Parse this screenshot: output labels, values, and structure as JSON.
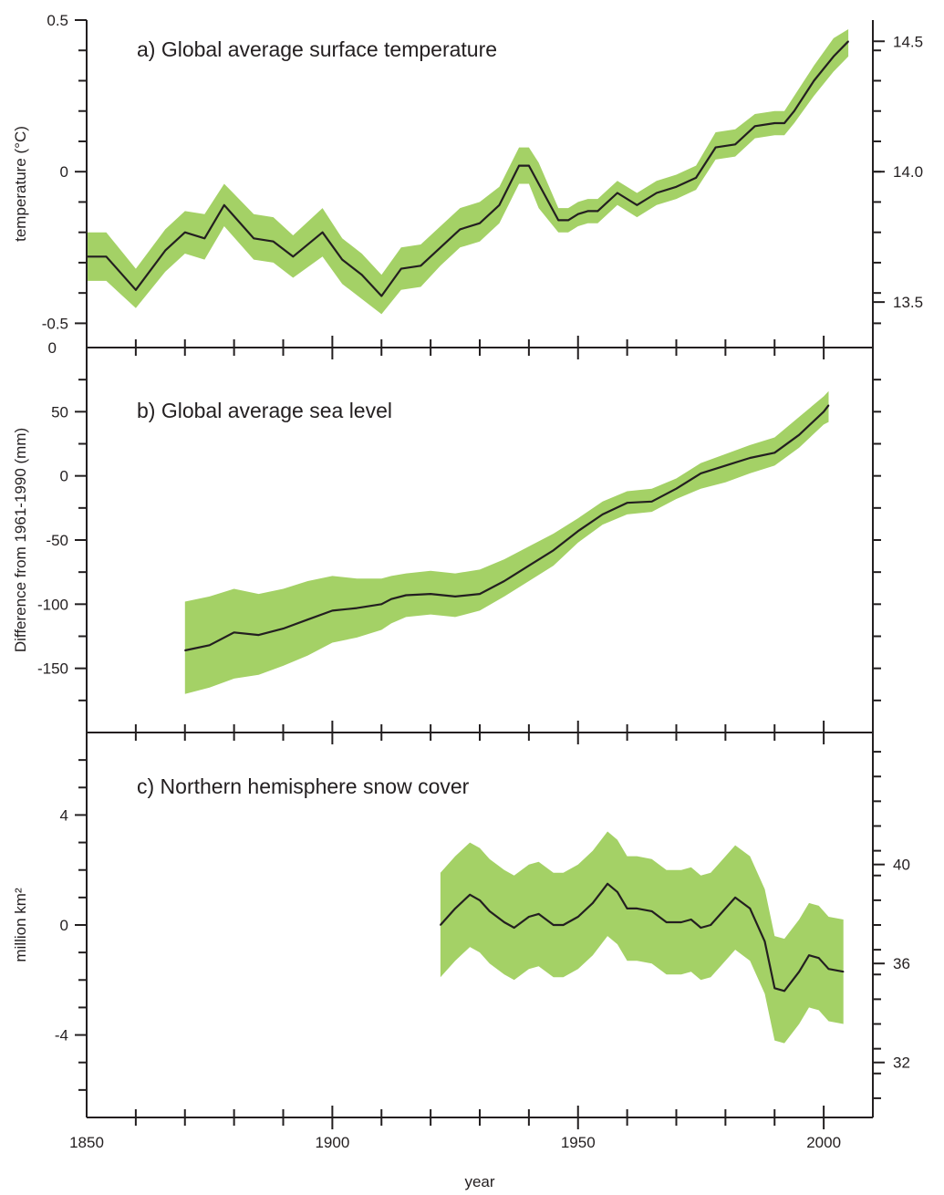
{
  "x_axis": {
    "label": "year",
    "min": 1850,
    "max": 2010,
    "ticks": [
      1850,
      1900,
      1950,
      2000
    ],
    "minor_step": 10
  },
  "chart_data": [
    {
      "type": "line",
      "title": "a) Global average surface temperature",
      "ylabel": "temperature (°C)",
      "ylim": [
        -0.58,
        0.5
      ],
      "y_ticks": [
        -0.5,
        0,
        0.5
      ],
      "y_minor_step": 0.1,
      "y_tick_extra": {
        "value": -0.58,
        "label": "0"
      },
      "right_axis": {
        "ticks": [
          {
            "label": "13.5",
            "value": -0.43
          },
          {
            "label": "14.0",
            "value": 0.0
          },
          {
            "label": "14.5",
            "value": 0.43
          }
        ],
        "minor_step": 0.1
      },
      "band_color": "#a4d166",
      "line_color": "#231f20",
      "series": [
        {
          "x": [
            1850,
            1854,
            1860,
            1866,
            1870,
            1874,
            1878,
            1884,
            1888,
            1892,
            1898,
            1902,
            1906,
            1910,
            1914,
            1918,
            1922,
            1926,
            1930,
            1934,
            1938,
            1940,
            1942,
            1946,
            1948,
            1950,
            1952,
            1954,
            1956,
            1958,
            1962,
            1966,
            1970,
            1974,
            1978,
            1982,
            1986,
            1990,
            1992,
            1994,
            1998,
            2002,
            2005
          ],
          "y": [
            -0.28,
            -0.28,
            -0.39,
            -0.26,
            -0.2,
            -0.22,
            -0.11,
            -0.22,
            -0.23,
            -0.28,
            -0.2,
            -0.29,
            -0.34,
            -0.41,
            -0.32,
            -0.31,
            -0.25,
            -0.19,
            -0.17,
            -0.11,
            0.02,
            0.02,
            -0.04,
            -0.16,
            -0.16,
            -0.14,
            -0.13,
            -0.13,
            -0.1,
            -0.07,
            -0.11,
            -0.07,
            -0.05,
            -0.02,
            0.08,
            0.09,
            0.15,
            0.16,
            0.16,
            0.2,
            0.3,
            0.38,
            0.43
          ],
          "lower": [
            -0.36,
            -0.36,
            -0.45,
            -0.33,
            -0.27,
            -0.29,
            -0.18,
            -0.29,
            -0.3,
            -0.35,
            -0.28,
            -0.37,
            -0.42,
            -0.47,
            -0.39,
            -0.38,
            -0.31,
            -0.25,
            -0.23,
            -0.17,
            -0.04,
            -0.04,
            -0.12,
            -0.2,
            -0.2,
            -0.18,
            -0.17,
            -0.17,
            -0.14,
            -0.11,
            -0.15,
            -0.11,
            -0.09,
            -0.06,
            0.04,
            0.05,
            0.11,
            0.12,
            0.12,
            0.16,
            0.25,
            0.33,
            0.38
          ],
          "upper": [
            -0.2,
            -0.2,
            -0.32,
            -0.19,
            -0.13,
            -0.14,
            -0.04,
            -0.14,
            -0.15,
            -0.21,
            -0.12,
            -0.22,
            -0.27,
            -0.34,
            -0.25,
            -0.24,
            -0.18,
            -0.12,
            -0.1,
            -0.05,
            0.08,
            0.08,
            0.03,
            -0.12,
            -0.12,
            -0.1,
            -0.09,
            -0.09,
            -0.06,
            -0.03,
            -0.07,
            -0.03,
            -0.01,
            0.02,
            0.13,
            0.14,
            0.19,
            0.2,
            0.2,
            0.25,
            0.35,
            0.44,
            0.47
          ]
        }
      ]
    },
    {
      "type": "line",
      "title": "b) Global average sea level",
      "ylabel": "Difference from 1961-1990 (mm)",
      "ylim": [
        -200,
        100
      ],
      "y_ticks": [
        -150,
        -100,
        -50,
        0,
        50
      ],
      "y_minor_step": 25,
      "right_axis": {
        "ticks": [],
        "minor_step": 25
      },
      "band_color": "#a4d166",
      "line_color": "#231f20",
      "series": [
        {
          "x": [
            1870,
            1875,
            1880,
            1885,
            1890,
            1895,
            1900,
            1905,
            1910,
            1912,
            1915,
            1920,
            1925,
            1930,
            1935,
            1940,
            1945,
            1950,
            1955,
            1960,
            1965,
            1970,
            1975,
            1980,
            1985,
            1990,
            1995,
            2000,
            2001
          ],
          "y": [
            -136,
            -132,
            -122,
            -124,
            -119,
            -112,
            -105,
            -103,
            -100,
            -96,
            -93,
            -92,
            -94,
            -92,
            -82,
            -70,
            -58,
            -43,
            -30,
            -21,
            -20,
            -10,
            2,
            8,
            14,
            18,
            32,
            50,
            55
          ],
          "lower": [
            -170,
            -165,
            -158,
            -155,
            -148,
            -140,
            -130,
            -126,
            -120,
            -115,
            -110,
            -108,
            -110,
            -105,
            -94,
            -82,
            -70,
            -52,
            -38,
            -30,
            -28,
            -18,
            -10,
            -5,
            2,
            8,
            22,
            40,
            42
          ],
          "upper": [
            -98,
            -94,
            -88,
            -92,
            -88,
            -82,
            -78,
            -80,
            -80,
            -78,
            -76,
            -74,
            -76,
            -73,
            -65,
            -55,
            -45,
            -33,
            -20,
            -12,
            -10,
            -2,
            10,
            17,
            24,
            30,
            46,
            62,
            66
          ]
        }
      ]
    },
    {
      "type": "line",
      "title": "c) Northern hemisphere snow cover",
      "ylabel": "million km²",
      "ylim": [
        -7,
        7
      ],
      "y_ticks": [
        -4,
        0,
        4
      ],
      "y_minor_step": 1,
      "right_axis": {
        "ticks": [
          {
            "label": "32",
            "value": -5.0
          },
          {
            "label": "36",
            "value": -1.4
          },
          {
            "label": "40",
            "value": 2.2
          }
        ],
        "minor_step": 0.9
      },
      "band_color": "#a4d166",
      "line_color": "#231f20",
      "series": [
        {
          "x": [
            1922,
            1925,
            1928,
            1930,
            1932,
            1935,
            1937,
            1940,
            1942,
            1945,
            1947,
            1950,
            1953,
            1956,
            1958,
            1960,
            1962,
            1965,
            1968,
            1971,
            1973,
            1975,
            1977,
            1979,
            1982,
            1985,
            1988,
            1990,
            1992,
            1995,
            1997,
            1999,
            2001,
            2004
          ],
          "y": [
            0.0,
            0.6,
            1.1,
            0.9,
            0.5,
            0.1,
            -0.1,
            0.3,
            0.4,
            0.0,
            0.0,
            0.3,
            0.8,
            1.5,
            1.2,
            0.6,
            0.6,
            0.5,
            0.1,
            0.1,
            0.2,
            -0.1,
            0.0,
            0.4,
            1.0,
            0.6,
            -0.6,
            -2.3,
            -2.4,
            -1.7,
            -1.1,
            -1.2,
            -1.6,
            -1.7
          ],
          "lower": [
            -1.9,
            -1.3,
            -0.8,
            -1.0,
            -1.4,
            -1.8,
            -2.0,
            -1.6,
            -1.5,
            -1.9,
            -1.9,
            -1.6,
            -1.1,
            -0.4,
            -0.7,
            -1.3,
            -1.3,
            -1.4,
            -1.8,
            -1.8,
            -1.7,
            -2.0,
            -1.9,
            -1.5,
            -0.9,
            -1.3,
            -2.5,
            -4.2,
            -4.3,
            -3.6,
            -3.0,
            -3.1,
            -3.5,
            -3.6
          ],
          "upper": [
            1.9,
            2.5,
            3.0,
            2.8,
            2.4,
            2.0,
            1.8,
            2.2,
            2.3,
            1.9,
            1.9,
            2.2,
            2.7,
            3.4,
            3.1,
            2.5,
            2.5,
            2.4,
            2.0,
            2.0,
            2.1,
            1.8,
            1.9,
            2.3,
            2.9,
            2.5,
            1.3,
            -0.4,
            -0.5,
            0.2,
            0.8,
            0.7,
            0.3,
            0.2
          ]
        }
      ]
    }
  ]
}
